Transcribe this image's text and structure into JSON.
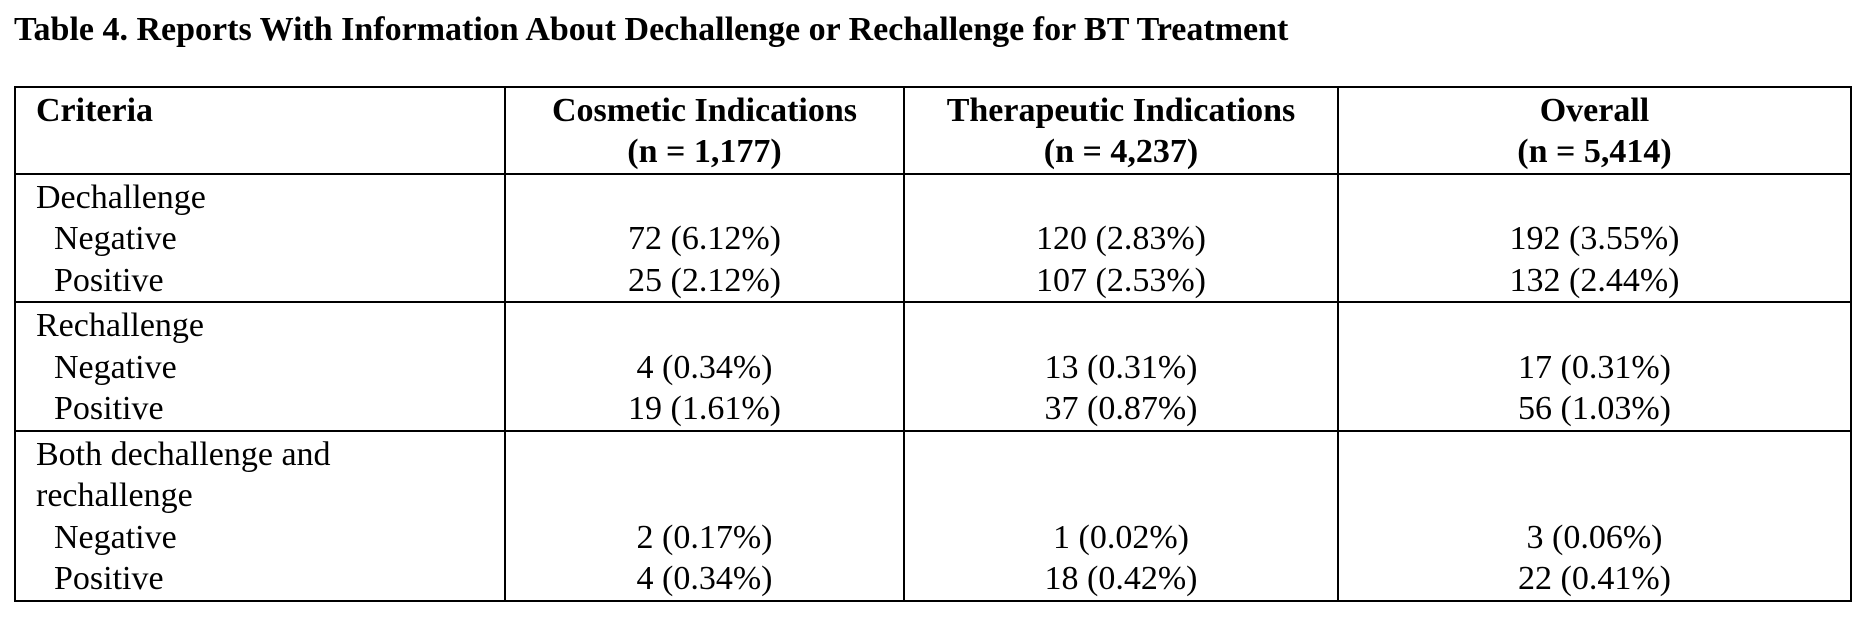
{
  "title": "Table 4. Reports With Information About Dechallenge or Rechallenge for BT Treatment",
  "headers": {
    "criteria": "Criteria",
    "cosmetic": {
      "label": "Cosmetic Indications",
      "n": "(n = 1,177)"
    },
    "therapeutic": {
      "label": "Therapeutic Indications",
      "n": "(n = 4,237)"
    },
    "overall": {
      "label": "Overall",
      "n": "(n = 5,414)"
    }
  },
  "groups": [
    {
      "label_lines": [
        "Dechallenge"
      ],
      "rows": [
        {
          "label": "Negative",
          "cosmetic": "72 (6.12%)",
          "therapeutic": "120 (2.83%)",
          "overall": "192 (3.55%)"
        },
        {
          "label": "Positive",
          "cosmetic": "25 (2.12%)",
          "therapeutic": "107 (2.53%)",
          "overall": "132 (2.44%)"
        }
      ]
    },
    {
      "label_lines": [
        "Rechallenge"
      ],
      "rows": [
        {
          "label": "Negative",
          "cosmetic": "4 (0.34%)",
          "therapeutic": "13 (0.31%)",
          "overall": "17 (0.31%)"
        },
        {
          "label": "Positive",
          "cosmetic": "19 (1.61%)",
          "therapeutic": "37 (0.87%)",
          "overall": "56 (1.03%)"
        }
      ]
    },
    {
      "label_lines": [
        "Both dechallenge and",
        "rechallenge"
      ],
      "rows": [
        {
          "label": "Negative",
          "cosmetic": "2 (0.17%)",
          "therapeutic": "1 (0.02%)",
          "overall": "3 (0.06%)"
        },
        {
          "label": "Positive",
          "cosmetic": "4 (0.34%)",
          "therapeutic": "18 (0.42%)",
          "overall": "22 (0.41%)"
        }
      ]
    }
  ]
}
